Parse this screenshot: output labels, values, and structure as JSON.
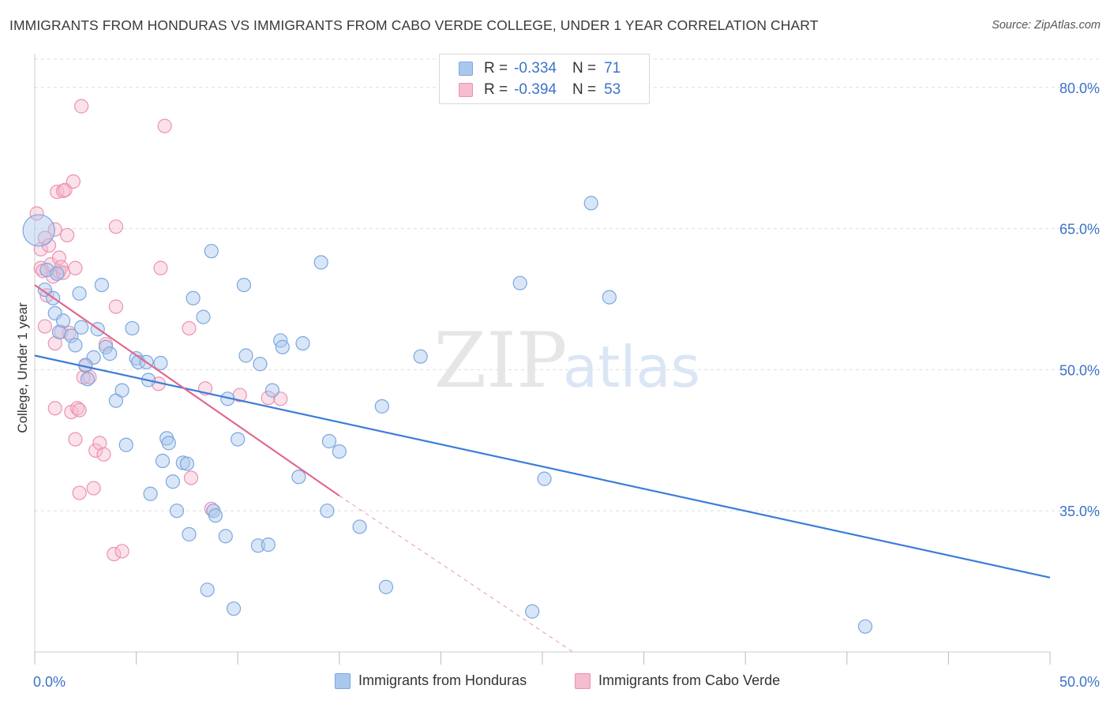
{
  "header": {
    "title": "IMMIGRANTS FROM HONDURAS VS IMMIGRANTS FROM CABO VERDE COLLEGE, UNDER 1 YEAR CORRELATION CHART",
    "source": "Source: ZipAtlas.com"
  },
  "legend": {
    "rows": [
      {
        "r_label": "R =",
        "r_value": "-0.334",
        "n_label": "N =",
        "n_value": "71"
      },
      {
        "r_label": "R =",
        "r_value": "-0.394",
        "n_label": "N =",
        "n_value": "53"
      }
    ]
  },
  "bottom_legend": {
    "series1": "Immigrants from Honduras",
    "series2": "Immigrants from Cabo Verde"
  },
  "watermark": {
    "zip": "ZIP",
    "atlas": "atlas"
  },
  "colors": {
    "blue_fill": "#aac8ee",
    "blue_stroke": "#7ba7e0",
    "blue_line": "#3b7dd8",
    "pink_fill": "#f6bcd0",
    "pink_stroke": "#ec92b2",
    "pink_line": "#e0698f",
    "tick_label": "#3b73c8",
    "grid": "#dddddd"
  },
  "chart_data": {
    "type": "scatter",
    "title": "IMMIGRANTS FROM HONDURAS VS IMMIGRANTS FROM CABO VERDE COLLEGE, UNDER 1 YEAR CORRELATION CHART",
    "xlabel": "",
    "ylabel": "College, Under 1 year",
    "xlim": [
      0,
      50
    ],
    "ylim": [
      20,
      83
    ],
    "x_tick_labels": [
      "0.0%",
      "50.0%"
    ],
    "y_ticks": [
      35,
      50,
      65,
      80
    ],
    "y_tick_labels": [
      "35.0%",
      "50.0%",
      "65.0%",
      "80.0%"
    ],
    "grid": true,
    "series": [
      {
        "name": "Immigrants from Honduras",
        "R": -0.334,
        "N": 71,
        "trend": {
          "x": [
            0,
            50
          ],
          "y": [
            51.5,
            27.9
          ]
        },
        "points": [
          {
            "x": 0.2,
            "y": 64.8
          },
          {
            "x": 0.6,
            "y": 60.6
          },
          {
            "x": 0.5,
            "y": 58.5
          },
          {
            "x": 1.1,
            "y": 60.2
          },
          {
            "x": 1.0,
            "y": 56.0
          },
          {
            "x": 1.2,
            "y": 54.0
          },
          {
            "x": 1.4,
            "y": 55.2
          },
          {
            "x": 1.8,
            "y": 53.6
          },
          {
            "x": 2.0,
            "y": 52.6
          },
          {
            "x": 2.2,
            "y": 58.1
          },
          {
            "x": 2.3,
            "y": 54.5
          },
          {
            "x": 2.6,
            "y": 49.0
          },
          {
            "x": 2.9,
            "y": 51.3
          },
          {
            "x": 3.1,
            "y": 54.3
          },
          {
            "x": 3.3,
            "y": 59.0
          },
          {
            "x": 3.5,
            "y": 52.4
          },
          {
            "x": 3.7,
            "y": 51.7
          },
          {
            "x": 4.0,
            "y": 46.7
          },
          {
            "x": 4.3,
            "y": 47.8
          },
          {
            "x": 4.5,
            "y": 42.0
          },
          {
            "x": 4.8,
            "y": 54.4
          },
          {
            "x": 5.0,
            "y": 51.2
          },
          {
            "x": 5.1,
            "y": 50.8
          },
          {
            "x": 5.5,
            "y": 50.8
          },
          {
            "x": 5.6,
            "y": 48.9
          },
          {
            "x": 5.7,
            "y": 36.8
          },
          {
            "x": 6.2,
            "y": 50.7
          },
          {
            "x": 6.3,
            "y": 40.3
          },
          {
            "x": 6.5,
            "y": 42.7
          },
          {
            "x": 6.6,
            "y": 42.2
          },
          {
            "x": 6.8,
            "y": 38.1
          },
          {
            "x": 7.0,
            "y": 35.0
          },
          {
            "x": 7.3,
            "y": 40.1
          },
          {
            "x": 7.5,
            "y": 40.0
          },
          {
            "x": 7.6,
            "y": 32.5
          },
          {
            "x": 7.8,
            "y": 57.6
          },
          {
            "x": 8.3,
            "y": 55.6
          },
          {
            "x": 8.5,
            "y": 26.6
          },
          {
            "x": 8.7,
            "y": 62.6
          },
          {
            "x": 8.8,
            "y": 35.0
          },
          {
            "x": 8.9,
            "y": 34.5
          },
          {
            "x": 9.4,
            "y": 32.3
          },
          {
            "x": 9.5,
            "y": 46.9
          },
          {
            "x": 9.8,
            "y": 24.6
          },
          {
            "x": 10.0,
            "y": 42.6
          },
          {
            "x": 10.3,
            "y": 59.0
          },
          {
            "x": 10.4,
            "y": 51.5
          },
          {
            "x": 11.0,
            "y": 31.3
          },
          {
            "x": 11.1,
            "y": 50.6
          },
          {
            "x": 11.5,
            "y": 31.4
          },
          {
            "x": 11.7,
            "y": 47.8
          },
          {
            "x": 12.1,
            "y": 53.1
          },
          {
            "x": 12.2,
            "y": 52.4
          },
          {
            "x": 13.2,
            "y": 52.8
          },
          {
            "x": 13.0,
            "y": 38.6
          },
          {
            "x": 14.1,
            "y": 61.4
          },
          {
            "x": 14.4,
            "y": 35.0
          },
          {
            "x": 14.5,
            "y": 42.4
          },
          {
            "x": 15.0,
            "y": 41.3
          },
          {
            "x": 16.0,
            "y": 33.3
          },
          {
            "x": 17.1,
            "y": 46.1
          },
          {
            "x": 17.3,
            "y": 26.9
          },
          {
            "x": 19.0,
            "y": 51.4
          },
          {
            "x": 23.9,
            "y": 59.2
          },
          {
            "x": 24.5,
            "y": 24.3
          },
          {
            "x": 25.1,
            "y": 38.4
          },
          {
            "x": 27.4,
            "y": 67.7
          },
          {
            "x": 28.3,
            "y": 57.7
          },
          {
            "x": 40.9,
            "y": 22.7
          },
          {
            "x": 0.9,
            "y": 57.6
          },
          {
            "x": 2.5,
            "y": 50.5
          }
        ]
      },
      {
        "name": "Immigrants from Cabo Verde",
        "R": -0.394,
        "N": 53,
        "trend": {
          "x": [
            0,
            15
          ],
          "y": [
            59.0,
            36.6
          ]
        },
        "trend_dashed": {
          "x": [
            15,
            26.5
          ],
          "y": [
            36.6,
            20.0
          ]
        },
        "points": [
          {
            "x": 0.1,
            "y": 66.6
          },
          {
            "x": 0.3,
            "y": 62.8
          },
          {
            "x": 0.3,
            "y": 60.8
          },
          {
            "x": 0.4,
            "y": 60.5
          },
          {
            "x": 0.5,
            "y": 54.6
          },
          {
            "x": 0.5,
            "y": 64.0
          },
          {
            "x": 0.7,
            "y": 63.2
          },
          {
            "x": 0.8,
            "y": 61.2
          },
          {
            "x": 0.9,
            "y": 59.9
          },
          {
            "x": 1.0,
            "y": 64.9
          },
          {
            "x": 1.0,
            "y": 52.8
          },
          {
            "x": 1.0,
            "y": 45.9
          },
          {
            "x": 1.1,
            "y": 68.9
          },
          {
            "x": 1.2,
            "y": 60.4
          },
          {
            "x": 1.2,
            "y": 61.9
          },
          {
            "x": 1.3,
            "y": 54.0
          },
          {
            "x": 1.3,
            "y": 60.9
          },
          {
            "x": 1.4,
            "y": 69.0
          },
          {
            "x": 1.4,
            "y": 60.3
          },
          {
            "x": 1.5,
            "y": 69.1
          },
          {
            "x": 1.6,
            "y": 64.3
          },
          {
            "x": 1.7,
            "y": 53.9
          },
          {
            "x": 1.8,
            "y": 45.5
          },
          {
            "x": 1.9,
            "y": 70.0
          },
          {
            "x": 2.0,
            "y": 60.8
          },
          {
            "x": 2.0,
            "y": 42.6
          },
          {
            "x": 2.1,
            "y": 45.9
          },
          {
            "x": 2.2,
            "y": 45.7
          },
          {
            "x": 2.2,
            "y": 36.9
          },
          {
            "x": 2.3,
            "y": 78.0
          },
          {
            "x": 2.4,
            "y": 49.2
          },
          {
            "x": 2.5,
            "y": 50.4
          },
          {
            "x": 2.7,
            "y": 49.2
          },
          {
            "x": 2.9,
            "y": 37.4
          },
          {
            "x": 3.0,
            "y": 41.4
          },
          {
            "x": 3.2,
            "y": 42.2
          },
          {
            "x": 3.4,
            "y": 41.0
          },
          {
            "x": 3.5,
            "y": 52.7
          },
          {
            "x": 3.9,
            "y": 30.4
          },
          {
            "x": 4.0,
            "y": 56.7
          },
          {
            "x": 4.0,
            "y": 65.2
          },
          {
            "x": 4.3,
            "y": 30.7
          },
          {
            "x": 6.1,
            "y": 48.5
          },
          {
            "x": 6.2,
            "y": 60.8
          },
          {
            "x": 6.4,
            "y": 75.9
          },
          {
            "x": 7.6,
            "y": 54.4
          },
          {
            "x": 7.7,
            "y": 38.5
          },
          {
            "x": 8.4,
            "y": 48.0
          },
          {
            "x": 8.7,
            "y": 35.2
          },
          {
            "x": 10.1,
            "y": 47.3
          },
          {
            "x": 11.5,
            "y": 47.0
          },
          {
            "x": 12.1,
            "y": 46.9
          },
          {
            "x": 0.6,
            "y": 57.9
          }
        ]
      }
    ]
  }
}
